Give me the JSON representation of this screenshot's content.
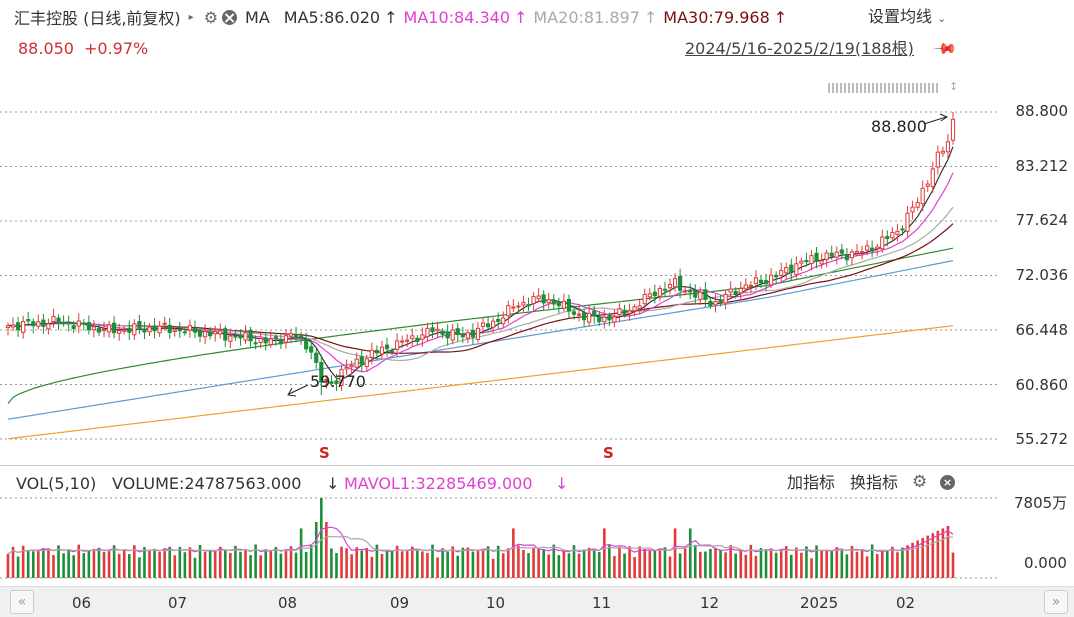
{
  "header": {
    "title": "汇丰控股 (日线,前复权)",
    "indicator": "MA",
    "ma5": "MA5:86.020",
    "ma10": "MA10:84.340",
    "ma20": "MA20:81.897",
    "ma30": "MA30:79.968",
    "arrow": "↑",
    "settings": "设置均线"
  },
  "quote": {
    "price": "88.050",
    "change": "+0.97%"
  },
  "range": "2024/5/16-2025/2/19(188根)",
  "colors": {
    "up": "#e23a3a",
    "down": "#1c8f3a",
    "ma5": "#333333",
    "ma10": "#e040d0",
    "ma20": "#a9a9a9",
    "ma30": "#7a1010",
    "ma60": "#2e8b2e",
    "ma120": "#5b9bd5",
    "ma250": "#f0a030"
  },
  "price_axis": [
    "88.800",
    "83.212",
    "77.624",
    "72.036",
    "66.448",
    "60.860",
    "55.272"
  ],
  "annotations": {
    "high": "88.800",
    "low": "59.770",
    "s_marker": "S"
  },
  "volume": {
    "label": "VOL(5,10)",
    "volume": "VOLUME:24787563.000",
    "mavol": "MAVOL1:32285469.000",
    "down_arrow": "↓",
    "add_indicator": "加指标",
    "switch_indicator": "换指标",
    "axis_top": "7805万",
    "axis_bottom": "0.000"
  },
  "x_axis": [
    "06",
    "07",
    "08",
    "09",
    "10",
    "11",
    "12",
    "2025",
    "02"
  ],
  "chart_data": {
    "type": "candlestick",
    "start": "2024/5/16",
    "end": "2025/2/19",
    "bars": 188,
    "ylim": [
      55.272,
      88.8
    ],
    "high": 88.8,
    "low": 59.77,
    "ma_latest": {
      "MA5": 86.02,
      "MA10": 84.34,
      "MA20": 81.897,
      "MA30": 79.968
    },
    "close_anchors": [
      [
        0,
        66.9
      ],
      [
        10,
        67.3
      ],
      [
        20,
        66.4
      ],
      [
        30,
        66.7
      ],
      [
        38,
        66.2
      ],
      [
        45,
        65.8
      ],
      [
        52,
        65.2
      ],
      [
        56,
        66.0
      ],
      [
        60,
        64.5
      ],
      [
        62,
        61.2
      ],
      [
        64,
        60.9
      ],
      [
        66,
        62.2
      ],
      [
        72,
        64.0
      ],
      [
        78,
        65.2
      ],
      [
        84,
        66.4
      ],
      [
        90,
        65.8
      ],
      [
        96,
        67.2
      ],
      [
        100,
        68.8
      ],
      [
        104,
        69.6
      ],
      [
        108,
        69.4
      ],
      [
        112,
        68.2
      ],
      [
        116,
        67.6
      ],
      [
        120,
        67.8
      ],
      [
        124,
        68.8
      ],
      [
        128,
        70.4
      ],
      [
        132,
        71.2
      ],
      [
        136,
        70.0
      ],
      [
        140,
        69.2
      ],
      [
        144,
        70.6
      ],
      [
        148,
        71.3
      ],
      [
        152,
        72.0
      ],
      [
        156,
        73.2
      ],
      [
        160,
        73.8
      ],
      [
        164,
        74.2
      ],
      [
        168,
        74.3
      ],
      [
        172,
        75.2
      ],
      [
        176,
        76.6
      ],
      [
        180,
        79.6
      ],
      [
        184,
        84.2
      ],
      [
        186,
        85.6
      ],
      [
        187,
        88.05
      ]
    ],
    "volume_max": 78050000
  }
}
